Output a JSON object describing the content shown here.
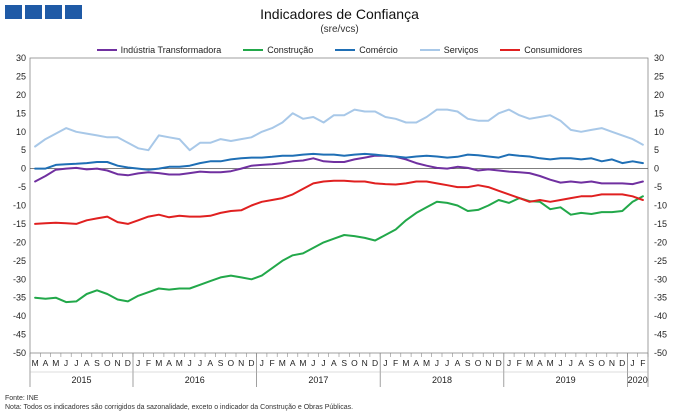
{
  "header": {
    "title": "Indicadores de Confiança",
    "subtitle": "(sre/vcs)"
  },
  "notes": {
    "source": "Fonte: INE",
    "note": "Nota: Todos os indicadores são corrigidos da sazonalidade, exceto o indicador da Construção e Obras Públicas."
  },
  "chart_data": {
    "type": "line",
    "ylim": [
      -50,
      30
    ],
    "yticks": [
      -50,
      -45,
      -40,
      -35,
      -30,
      -25,
      -20,
      -15,
      -10,
      -5,
      0,
      5,
      10,
      15,
      20,
      25,
      30
    ],
    "month_labels": [
      "M",
      "A",
      "M",
      "J",
      "J",
      "A",
      "S",
      "O",
      "N",
      "D",
      "J",
      "F",
      "M",
      "A",
      "M",
      "J",
      "J",
      "A",
      "S",
      "O",
      "N",
      "D",
      "J",
      "F",
      "M",
      "A",
      "M",
      "J",
      "J",
      "A",
      "S",
      "O",
      "N",
      "D",
      "J",
      "F",
      "M",
      "A",
      "M",
      "J",
      "J",
      "A",
      "S",
      "O",
      "N",
      "D",
      "J",
      "F",
      "M",
      "A",
      "M",
      "J",
      "J",
      "A",
      "S",
      "O",
      "N",
      "D",
      "J",
      "F"
    ],
    "years": [
      {
        "label": "2015",
        "start": 0,
        "end": 9
      },
      {
        "label": "2016",
        "start": 10,
        "end": 21
      },
      {
        "label": "2017",
        "start": 22,
        "end": 33
      },
      {
        "label": "2018",
        "start": 34,
        "end": 45
      },
      {
        "label": "2019",
        "start": 46,
        "end": 57
      },
      {
        "label": "2020",
        "start": 58,
        "end": 59
      }
    ],
    "series": [
      {
        "name": "Indústria Transformadora",
        "color": "#7030a0",
        "values": [
          -3.5,
          -2,
          -0.3,
          0,
          0.2,
          -0.2,
          0,
          -0.5,
          -1.5,
          -1.8,
          -1.3,
          -1,
          -1.2,
          -1.6,
          -1.6,
          -1.2,
          -0.8,
          -1,
          -1,
          -0.7,
          0,
          0.8,
          1,
          1.2,
          1.5,
          2,
          2.2,
          2.8,
          2,
          1.8,
          1.8,
          2.5,
          3,
          3.5,
          3.5,
          3.2,
          2.5,
          1.5,
          0.8,
          0.2,
          0,
          0.5,
          0.2,
          -0.5,
          -0.2,
          -0.5,
          -0.8,
          -1,
          -1.2,
          -2,
          -3,
          -3.8,
          -3.5,
          -3.8,
          -3.5,
          -4,
          -4,
          -4,
          -4.2,
          -3.5
        ]
      },
      {
        "name": "Construção",
        "color": "#22a84a",
        "values": [
          -35,
          -35.3,
          -35,
          -36.2,
          -36,
          -34,
          -33,
          -34,
          -35.5,
          -36,
          -34.5,
          -33.5,
          -32.5,
          -32.8,
          -32.5,
          -32.5,
          -31.5,
          -30.5,
          -29.5,
          -29,
          -29.5,
          -30,
          -29,
          -27,
          -25,
          -23.5,
          -23,
          -21.5,
          -20,
          -19,
          -18,
          -18.3,
          -18.8,
          -19.5,
          -18,
          -16.5,
          -14,
          -12,
          -10.5,
          -9,
          -9.3,
          -10,
          -11.5,
          -11.2,
          -10,
          -8.5,
          -9.3,
          -8,
          -8.8,
          -9,
          -11,
          -10.5,
          -12.5,
          -12,
          -12.3,
          -11.8,
          -11.8,
          -11.5,
          -9,
          -7.5
        ]
      },
      {
        "name": "Comércio",
        "color": "#1f6fb5",
        "values": [
          0,
          0,
          1,
          1.2,
          1.3,
          1.5,
          1.8,
          1.8,
          0.8,
          0.3,
          0,
          -0.3,
          0,
          0.5,
          0.5,
          0.8,
          1.5,
          2,
          2,
          2.5,
          2.8,
          3,
          3,
          3.2,
          3.5,
          3.5,
          3.8,
          4,
          3.8,
          3.8,
          3.5,
          3.8,
          4,
          3.8,
          3.5,
          3.3,
          3,
          3.3,
          3.5,
          3.3,
          3,
          3.2,
          3.8,
          3.6,
          3.3,
          3,
          3.8,
          3.5,
          3.3,
          2.8,
          2.5,
          2.8,
          2.8,
          2.5,
          2.8,
          2,
          2.5,
          1.5,
          2,
          1.5
        ]
      },
      {
        "name": "Serviços",
        "color": "#a8c8e8",
        "values": [
          6,
          8,
          9.5,
          11,
          10,
          9.5,
          9,
          8.5,
          8.5,
          7,
          5.5,
          5,
          9,
          8.5,
          8,
          5,
          7,
          7,
          8,
          7.5,
          8,
          8.5,
          10,
          11,
          12.5,
          15,
          13.5,
          14,
          12.5,
          14.5,
          14.5,
          16,
          15.5,
          15.5,
          14,
          13.5,
          12.5,
          12.5,
          14,
          16,
          16,
          15.5,
          13.5,
          13,
          13,
          15,
          16,
          14.5,
          13.5,
          14,
          14.5,
          13,
          10.5,
          10,
          10.5,
          11,
          10,
          9,
          8,
          6.5
        ]
      },
      {
        "name": "Consumidores",
        "color": "#e02020",
        "values": [
          -15,
          -14.8,
          -14.7,
          -14.8,
          -15,
          -14,
          -13.5,
          -13,
          -14.5,
          -15,
          -14,
          -13,
          -12.5,
          -13.2,
          -12.8,
          -13,
          -13,
          -12.8,
          -12,
          -11.5,
          -11.3,
          -10,
          -9,
          -8.5,
          -8,
          -7,
          -5.5,
          -4,
          -3.5,
          -3.3,
          -3.3,
          -3.5,
          -3.5,
          -4,
          -4.2,
          -4.3,
          -4,
          -3.5,
          -3.5,
          -4,
          -4.5,
          -5,
          -5,
          -4.5,
          -5,
          -6,
          -7,
          -8,
          -9,
          -8.5,
          -9,
          -8.5,
          -8,
          -7.5,
          -7.5,
          -7,
          -7,
          -7,
          -7.5,
          -8.5
        ]
      }
    ]
  }
}
